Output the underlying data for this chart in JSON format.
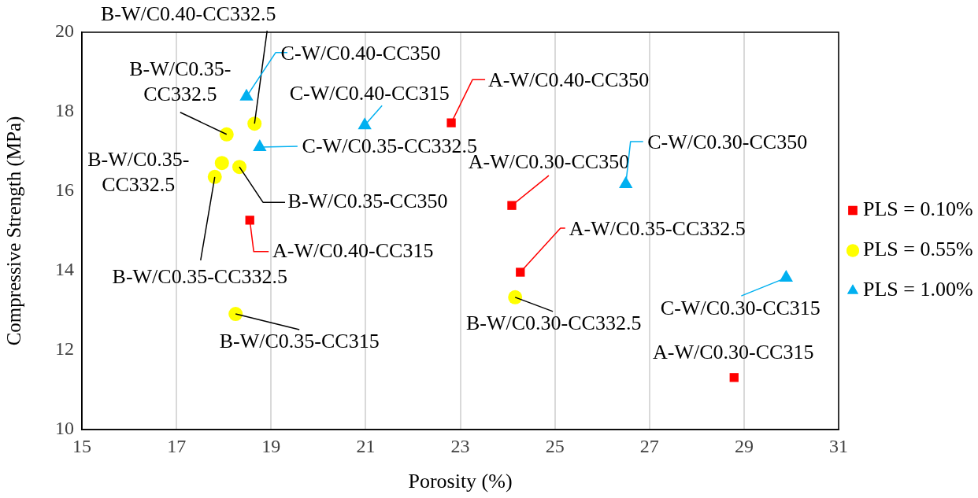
{
  "chart_data": {
    "type": "scatter",
    "xlabel": "Porosity (%)",
    "ylabel": "Compressive Strength (MPa)",
    "xlim": [
      15,
      31
    ],
    "xticks": [
      15,
      17,
      19,
      21,
      23,
      25,
      27,
      29,
      31
    ],
    "ylim": [
      10,
      20
    ],
    "yticks": [
      10,
      12,
      14,
      16,
      18,
      20
    ],
    "grid": "x",
    "legend": "right",
    "series": [
      {
        "name": "PLS = 0.10%",
        "color": "#ff0000",
        "marker": "square",
        "x": [
          22.81,
          24.09,
          24.27,
          18.55,
          28.79
        ],
        "values": [
          17.72,
          15.64,
          13.96,
          15.27,
          11.31
        ]
      },
      {
        "name": "PLS = 0.55%",
        "color": "#ffff00",
        "marker": "circle",
        "x": [
          18.65,
          18.06,
          17.96,
          17.81,
          18.33,
          18.25,
          24.16
        ],
        "values": [
          17.7,
          17.43,
          16.71,
          16.36,
          16.61,
          12.91,
          13.33
        ]
      },
      {
        "name": "PLS = 1.00%",
        "color": "#00b0f0",
        "marker": "triangle",
        "x": [
          18.48,
          18.76,
          20.98,
          26.5,
          29.89
        ],
        "values": [
          18.38,
          17.11,
          17.66,
          16.18,
          13.82
        ]
      }
    ],
    "annotations": [
      {
        "text": "A-W/C0.40-CC350",
        "x": 22.81,
        "y": 17.72
      },
      {
        "text": "A-W/C0.30-CC350",
        "x": 24.09,
        "y": 15.64
      },
      {
        "text": "A-W/C0.35-CC332.5",
        "x": 24.27,
        "y": 13.96
      },
      {
        "text": "A-W/C0.40-CC315",
        "x": 18.55,
        "y": 15.27
      },
      {
        "text": "A-W/C0.30-CC315",
        "x": 28.79,
        "y": 11.31
      },
      {
        "text": "B-W/C0.40-CC332.5",
        "x": 18.65,
        "y": 17.7
      },
      {
        "text": "B-W/C0.35-CC332.5",
        "x": 18.06,
        "y": 17.43
      },
      {
        "text": "B-W/C0.35-CC332.5",
        "x": 17.96,
        "y": 16.71
      },
      {
        "text": "B-W/C0.35-CC332.5",
        "x": 17.81,
        "y": 16.36
      },
      {
        "text": "B-W/C0.35-CC350",
        "x": 18.33,
        "y": 16.61
      },
      {
        "text": "B-W/C0.35-CC315",
        "x": 18.25,
        "y": 12.91
      },
      {
        "text": "B-W/C0.30-CC332.5",
        "x": 24.16,
        "y": 13.33
      },
      {
        "text": "C-W/C0.40-CC350",
        "x": 18.48,
        "y": 18.38
      },
      {
        "text": "C-W/C0.35-CC332.5",
        "x": 18.76,
        "y": 17.11
      },
      {
        "text": "C-W/C0.40-CC315",
        "x": 20.98,
        "y": 17.66
      },
      {
        "text": "C-W/C0.30-CC350",
        "x": 26.5,
        "y": 16.18
      },
      {
        "text": "C-W/C0.30-CC315",
        "x": 29.89,
        "y": 13.82
      }
    ]
  }
}
